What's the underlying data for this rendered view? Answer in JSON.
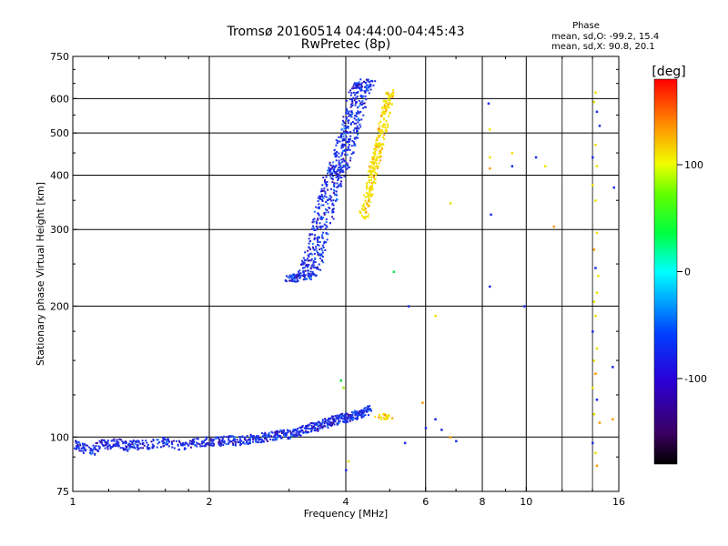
{
  "chart_data": {
    "type": "scatter",
    "title": "Tromsø 20160514 04:44:00-04:45:43",
    "subtitle": "RwPretec (8p)",
    "xlabel": "Frequency [MHz]",
    "ylabel": "Stationary phase Virtual Height [km]",
    "x_scale": "log",
    "y_scale": "log",
    "xlim": [
      1,
      16
    ],
    "ylim": [
      75,
      750
    ],
    "x_ticks": [
      1,
      2,
      4,
      6,
      8,
      10,
      16
    ],
    "y_ticks": [
      75,
      100,
      200,
      300,
      400,
      500,
      600,
      750
    ],
    "grid": true,
    "phase_info": {
      "heading": "Phase",
      "line1": "mean, sd,O: -99.2, 15.4",
      "line2": "mean, sd,X:  90.8, 20.1"
    },
    "colorbar": {
      "label": "[deg]",
      "range": [
        -180,
        180
      ],
      "ticks": [
        100,
        0,
        -100
      ],
      "colormap": "rainbow (black-purple-blue-cyan-green-yellow-orange-red)"
    },
    "colors": {
      "o_mode": "#1a2ee8",
      "x_mode": "#f2e100",
      "o_mode_dark": "#3a0ca8",
      "background": "#ffffff",
      "grid": "#000000"
    },
    "series": [
      {
        "trace_points": [
          [
            1.0,
            97
          ],
          [
            1.05,
            95
          ],
          [
            1.1,
            93
          ],
          [
            1.15,
            97
          ],
          [
            1.2,
            96
          ],
          [
            1.25,
            98
          ],
          [
            1.3,
            95
          ],
          [
            1.35,
            97
          ],
          [
            1.4,
            96
          ],
          [
            1.5,
            97
          ],
          [
            1.6,
            98
          ],
          [
            1.7,
            96
          ],
          [
            1.8,
            97
          ],
          [
            1.9,
            98
          ],
          [
            2.0,
            98
          ],
          [
            2.1,
            98
          ],
          [
            2.2,
            99
          ],
          [
            2.3,
            98
          ],
          [
            2.4,
            99
          ],
          [
            2.5,
            100
          ],
          [
            2.6,
            100
          ],
          [
            2.7,
            101
          ],
          [
            2.8,
            101
          ],
          [
            2.9,
            102
          ],
          [
            3.0,
            102
          ],
          [
            3.1,
            103
          ],
          [
            3.2,
            104
          ],
          [
            3.3,
            105
          ],
          [
            3.4,
            106
          ],
          [
            3.5,
            107
          ],
          [
            3.6,
            108
          ],
          [
            3.7,
            109
          ],
          [
            3.8,
            110
          ],
          [
            3.9,
            111
          ],
          [
            4.0,
            111
          ],
          [
            4.1,
            112
          ],
          [
            4.2,
            113
          ],
          [
            4.3,
            114
          ],
          [
            4.4,
            115
          ],
          [
            4.5,
            116
          ]
        ],
        "trace_points_2": [
          [
            3.05,
            233
          ],
          [
            3.1,
            233
          ],
          [
            3.2,
            235
          ],
          [
            3.3,
            240
          ],
          [
            3.35,
            250
          ],
          [
            3.4,
            265
          ],
          [
            3.45,
            280
          ],
          [
            3.5,
            300
          ],
          [
            3.55,
            320
          ],
          [
            3.6,
            340
          ],
          [
            3.65,
            360
          ],
          [
            3.7,
            380
          ],
          [
            3.75,
            400
          ],
          [
            3.8,
            410
          ],
          [
            3.85,
            420
          ],
          [
            3.9,
            440
          ],
          [
            3.95,
            460
          ],
          [
            4.0,
            480
          ],
          [
            4.05,
            500
          ],
          [
            4.1,
            525
          ],
          [
            4.15,
            555
          ],
          [
            4.2,
            585
          ],
          [
            4.25,
            615
          ],
          [
            4.3,
            640
          ],
          [
            4.35,
            650
          ],
          [
            4.4,
            655
          ]
        ]
      },
      {
        "trace_points": [
          [
            4.35,
            320
          ],
          [
            4.4,
            340
          ],
          [
            4.45,
            360
          ],
          [
            4.5,
            380
          ],
          [
            4.55,
            400
          ],
          [
            4.6,
            420
          ],
          [
            4.65,
            440
          ],
          [
            4.7,
            460
          ],
          [
            4.75,
            480
          ],
          [
            4.8,
            510
          ],
          [
            4.85,
            540
          ],
          [
            4.9,
            570
          ],
          [
            4.95,
            600
          ],
          [
            5.0,
            630
          ]
        ],
        "trace_points_2": [
          [
            4.7,
            111
          ],
          [
            4.8,
            112
          ],
          [
            4.9,
            111
          ],
          [
            5.0,
            112
          ]
        ]
      }
    ],
    "outliers": [
      [
        8.25,
        585,
        -110
      ],
      [
        8.3,
        510,
        120
      ],
      [
        8.3,
        440,
        100
      ],
      [
        8.3,
        415,
        160
      ],
      [
        8.35,
        325,
        -110
      ],
      [
        8.3,
        222,
        -110
      ],
      [
        9.3,
        450,
        110
      ],
      [
        9.3,
        420,
        -130
      ],
      [
        10.5,
        440,
        -110
      ],
      [
        11.0,
        420,
        100
      ],
      [
        11.5,
        305,
        140
      ],
      [
        9.9,
        200,
        -110
      ],
      [
        5.9,
        120,
        150
      ],
      [
        6.3,
        190,
        100
      ],
      [
        6.5,
        104,
        -120
      ],
      [
        6.8,
        100,
        130
      ],
      [
        7.0,
        98,
        -110
      ],
      [
        6.8,
        345,
        120
      ],
      [
        5.1,
        240,
        0
      ],
      [
        5.5,
        200,
        -110
      ],
      [
        5.4,
        97,
        -110
      ],
      [
        6.0,
        105,
        -120
      ],
      [
        6.3,
        110,
        -125
      ],
      [
        14.2,
        620,
        110
      ],
      [
        14.3,
        560,
        -110
      ],
      [
        14.5,
        520,
        -130
      ],
      [
        14.1,
        590,
        100
      ],
      [
        14.2,
        470,
        100
      ],
      [
        14.0,
        440,
        -130
      ],
      [
        14.3,
        420,
        120
      ],
      [
        14.0,
        380,
        100
      ],
      [
        14.2,
        350,
        110
      ],
      [
        14.3,
        295,
        110
      ],
      [
        14.1,
        270,
        130
      ],
      [
        14.2,
        245,
        -110
      ],
      [
        14.4,
        235,
        100
      ],
      [
        14.3,
        215,
        100
      ],
      [
        14.1,
        205,
        110
      ],
      [
        14.2,
        190,
        100
      ],
      [
        14.0,
        175,
        -110
      ],
      [
        14.3,
        160,
        110
      ],
      [
        14.1,
        150,
        100
      ],
      [
        14.2,
        140,
        150
      ],
      [
        14.0,
        130,
        110
      ],
      [
        14.3,
        122,
        -110
      ],
      [
        14.1,
        113,
        100
      ],
      [
        14.5,
        108,
        130
      ],
      [
        14.0,
        97,
        -110
      ],
      [
        14.2,
        92,
        100
      ],
      [
        14.3,
        86,
        150
      ],
      [
        15.5,
        110,
        130
      ],
      [
        15.5,
        145,
        -110
      ],
      [
        15.6,
        375,
        -110
      ],
      [
        4.0,
        84,
        -110
      ],
      [
        4.05,
        88,
        120
      ],
      [
        3.95,
        130,
        60
      ],
      [
        3.9,
        135,
        20
      ]
    ]
  }
}
